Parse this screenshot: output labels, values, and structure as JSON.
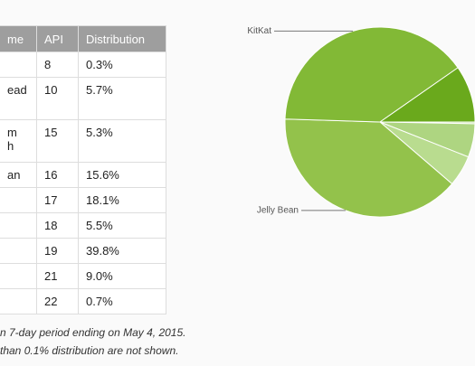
{
  "table": {
    "header": [
      "me",
      "API",
      "Distribution"
    ],
    "rows": [
      [
        null,
        "8",
        "0.3%"
      ],
      [
        "ead",
        "10",
        "5.7%"
      ],
      [
        [
          "m",
          "h"
        ],
        "15",
        "5.3%"
      ],
      [
        "an",
        "16",
        "15.6%"
      ],
      [
        null,
        "17",
        "18.1%"
      ],
      [
        null,
        "18",
        "5.5%"
      ],
      [
        null,
        "19",
        "39.8%"
      ],
      [
        null,
        "21",
        "9.0%"
      ],
      [
        null,
        "22",
        "0.7%"
      ]
    ]
  },
  "notes": [
    "n 7-day period ending on May 4, 2015.",
    "than 0.1% distribution are not shown."
  ],
  "chart_data": {
    "type": "pie",
    "labels": [
      null,
      null,
      null,
      "Jelly Bean",
      "KitKat",
      null
    ],
    "values": [
      0.3,
      5.7,
      5.3,
      39.2,
      39.8,
      9.7
    ],
    "colors": [
      "#c5e1a5",
      "#aed581",
      "#b9dc8f",
      "#93c24b",
      "#82b936",
      "#6aa91c"
    ]
  }
}
